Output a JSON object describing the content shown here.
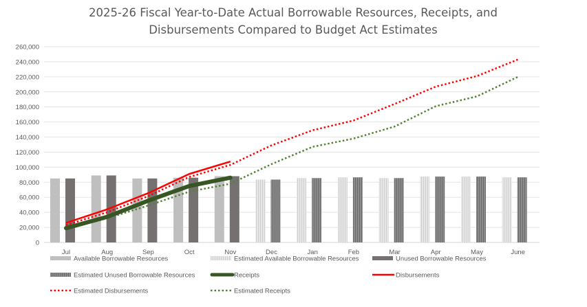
{
  "chart_data": {
    "type": "bar",
    "title_lines": [
      "2025-26 Fiscal Year-to-Date Actual Borrowable Resources, Receipts, and",
      "Disbursements Compared to Budget Act Estimates"
    ],
    "xlabel": "",
    "ylabel": "",
    "ylim": [
      0,
      260000
    ],
    "y_ticks": [
      0,
      20000,
      40000,
      60000,
      80000,
      100000,
      120000,
      140000,
      160000,
      180000,
      200000,
      220000,
      240000,
      260000
    ],
    "y_tick_labels": [
      "0",
      "20,000",
      "40,000",
      "60,000",
      "80,000",
      "100,000",
      "120,000",
      "140,000",
      "160,000",
      "180,000",
      "200,000",
      "220,000",
      "240,000",
      "260,000"
    ],
    "grid": true,
    "categories": [
      "Jul",
      "Aug",
      "Sep",
      "Oct",
      "Nov",
      "Dec",
      "Jan",
      "Feb",
      "Mar",
      "Apr",
      "May",
      "June"
    ],
    "bar_series": [
      {
        "name": "Available Borrowable Resources",
        "kind": "actual-light",
        "color": "#bfbfbf",
        "values": [
          85000,
          89000,
          85000,
          86000,
          88000,
          null,
          null,
          null,
          null,
          null,
          null,
          null
        ]
      },
      {
        "name": "Estimated Available Borrowable Resources",
        "kind": "estimated-light",
        "color": "#d9d9d9",
        "values": [
          null,
          null,
          null,
          null,
          null,
          83500,
          85500,
          86500,
          85500,
          87500,
          87500,
          86500
        ]
      },
      {
        "name": "Unused Borrowable Resources",
        "kind": "actual-dark",
        "color": "#757171",
        "values": [
          85000,
          89000,
          85000,
          86000,
          88000,
          null,
          null,
          null,
          null,
          null,
          null,
          null
        ]
      },
      {
        "name": "Estimated Unused Borrowable Resources",
        "kind": "estimated-dark",
        "color": "#7f7f7f",
        "values": [
          null,
          null,
          null,
          null,
          null,
          83500,
          85500,
          86500,
          85500,
          87500,
          87500,
          86500
        ]
      }
    ],
    "line_series": [
      {
        "name": "Receipts",
        "style": "thick-solid",
        "color": "#375623",
        "values": [
          19000,
          34000,
          55500,
          75000,
          86000,
          null,
          null,
          null,
          null,
          null,
          null,
          null
        ]
      },
      {
        "name": "Disbursements",
        "style": "solid",
        "color": "#ff0000",
        "values": [
          26000,
          44000,
          65500,
          91000,
          107500,
          null,
          null,
          null,
          null,
          null,
          null,
          null
        ]
      },
      {
        "name": "Estimated Disbursements",
        "style": "dotted",
        "color": "#ff0000",
        "values": [
          23000,
          40000,
          61500,
          87000,
          103000,
          129000,
          149000,
          162000,
          184000,
          207000,
          221000,
          243000
        ]
      },
      {
        "name": "Estimated Receipts",
        "style": "dotted",
        "color": "#548235",
        "values": [
          18000,
          32000,
          49000,
          67500,
          78000,
          104000,
          127000,
          138000,
          154000,
          181000,
          194000,
          220000
        ]
      }
    ],
    "legend": {
      "placement": "bottom",
      "items": [
        {
          "label": "Available Borrowable Resources",
          "swatch": "bar-light"
        },
        {
          "label": "Estimated Available Borrowable Resources",
          "swatch": "bar-light-pattern"
        },
        {
          "label": "Unused Borrowable Resources",
          "swatch": "bar-dark"
        },
        {
          "label": "Estimated Unused Borrowable Resources",
          "swatch": "bar-dark-pattern"
        },
        {
          "label": "Receipts",
          "swatch": "line-thick-green"
        },
        {
          "label": "Disbursements",
          "swatch": "line-red"
        },
        {
          "label": "Estimated Disbursements",
          "swatch": "dotted-red"
        },
        {
          "label": "Estimated Receipts",
          "swatch": "dotted-green"
        }
      ]
    }
  }
}
